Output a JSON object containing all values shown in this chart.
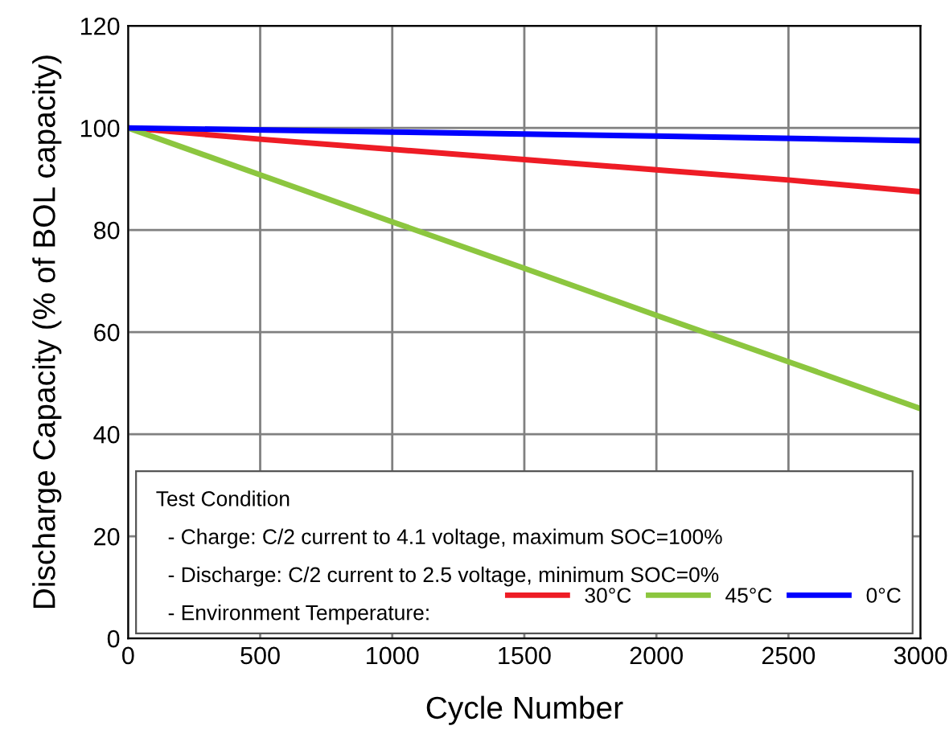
{
  "chart_data": {
    "type": "line",
    "xlabel": "Cycle Number",
    "ylabel": "Discharge Capacity (% of BOL capacity)",
    "xlim": [
      0,
      3000
    ],
    "xticks": [
      0,
      500,
      1000,
      1500,
      2000,
      2500,
      3000
    ],
    "ylim": [
      0,
      120
    ],
    "yticks": [
      0,
      20,
      40,
      60,
      80,
      100,
      120
    ],
    "grid": true,
    "legend": "bottom right",
    "annotations": [
      "Test Condition",
      "- Charge: C/2 current to 4.1 voltage, maximum SOC=100%",
      "- Discharge: C/2 current to 2.5 voltage, minimum SOC=0%",
      "- Environment Temperature:"
    ],
    "series": [
      {
        "name": "30°C",
        "color": "#ee1c25",
        "x": [
          0,
          500,
          1000,
          1500,
          2000,
          2500,
          3000
        ],
        "values": [
          100,
          97.8,
          95.8,
          93.8,
          91.8,
          89.8,
          87.5
        ]
      },
      {
        "name": "45°C",
        "color": "#8cc63f",
        "x": [
          0,
          500,
          1000,
          1500,
          2000,
          2500,
          3000
        ],
        "values": [
          100,
          90.8,
          81.6,
          72.5,
          63.3,
          54.2,
          45
        ]
      },
      {
        "name": "0°C",
        "color": "#0000ff",
        "x": [
          0,
          1000,
          2000,
          3000
        ],
        "values": [
          100,
          99.2,
          98.4,
          97.5
        ]
      }
    ]
  }
}
